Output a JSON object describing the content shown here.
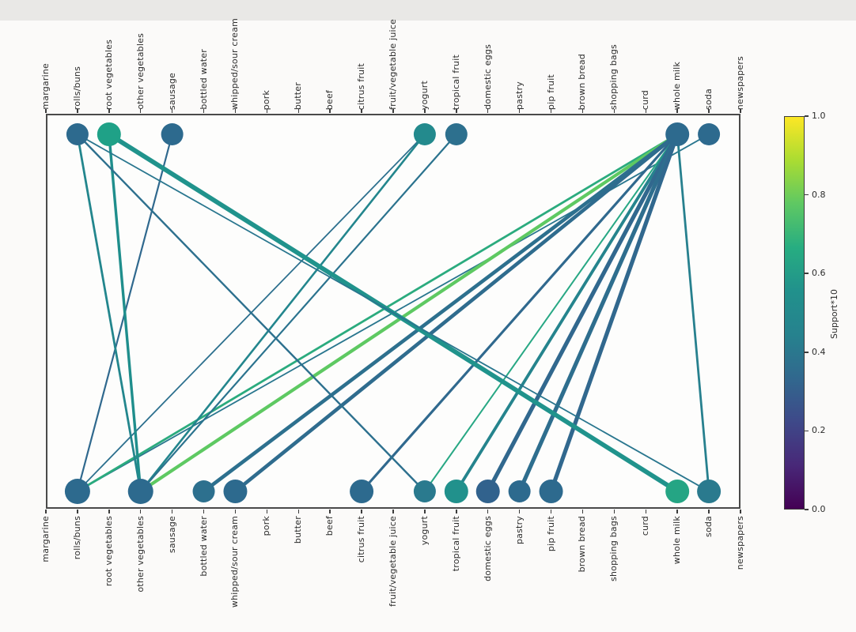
{
  "chart_data": {
    "type": "scatter",
    "subtype": "bipartite-association-rules-network",
    "title": "",
    "xlabel": "",
    "ylabel": "",
    "grid": false,
    "items": [
      "margarine",
      "rolls/buns",
      "root vegetables",
      "other vegetables",
      "sausage",
      "bottled water",
      "whipped/sour cream",
      "pork",
      "butter",
      "beef",
      "citrus fruit",
      "fruit/vegetable juice",
      "yogurt",
      "tropical fruit",
      "domestic eggs",
      "pastry",
      "pip fruit",
      "brown bread",
      "shopping bags",
      "curd",
      "whole milk",
      "soda",
      "newspapers"
    ],
    "top_axis_nodes": [
      {
        "item": "rolls/buns",
        "color": "#2d6a8e",
        "r": 14
      },
      {
        "item": "root vegetables",
        "color": "#1fa187",
        "r": 15
      },
      {
        "item": "sausage",
        "color": "#2d6a8e",
        "r": 14
      },
      {
        "item": "yogurt",
        "color": "#238a8d",
        "r": 14
      },
      {
        "item": "tropical fruit",
        "color": "#2d708e",
        "r": 14
      },
      {
        "item": "whole milk",
        "color": "#2d6a8e",
        "r": 15
      },
      {
        "item": "soda",
        "color": "#2d6a8e",
        "r": 14
      }
    ],
    "bottom_axis_nodes": [
      {
        "item": "rolls/buns",
        "color": "#2d6a8e",
        "r": 16
      },
      {
        "item": "other vegetables",
        "color": "#2d6a8e",
        "r": 16
      },
      {
        "item": "bottled water",
        "color": "#2d708e",
        "r": 14
      },
      {
        "item": "whipped/sour cream",
        "color": "#2d6a8e",
        "r": 15
      },
      {
        "item": "citrus fruit",
        "color": "#2d6a8e",
        "r": 15
      },
      {
        "item": "yogurt",
        "color": "#2a7a8e",
        "r": 14
      },
      {
        "item": "tropical fruit",
        "color": "#21918c",
        "r": 15
      },
      {
        "item": "domestic eggs",
        "color": "#31628d",
        "r": 15
      },
      {
        "item": "pastry",
        "color": "#2d6a8e",
        "r": 14
      },
      {
        "item": "pip fruit",
        "color": "#2d6a8e",
        "r": 15
      },
      {
        "item": "whole milk",
        "color": "#25a584",
        "r": 15
      },
      {
        "item": "soda",
        "color": "#2a7a8e",
        "r": 15
      }
    ],
    "edges": [
      {
        "from": "rolls/buns",
        "to": "sausage",
        "support10": 0.31,
        "color": "#30698e",
        "width": 2.2
      },
      {
        "from": "rolls/buns",
        "to": "yogurt",
        "support10": 0.34,
        "color": "#2d708e",
        "width": 1.8
      },
      {
        "from": "rolls/buns",
        "to": "soda",
        "support10": 0.38,
        "color": "#29768e",
        "width": 1.8
      },
      {
        "from": "rolls/buns",
        "to": "whole milk",
        "support10": 0.57,
        "color": "#2bab7e",
        "width": 2.8
      },
      {
        "from": "other vegetables",
        "to": "rolls/buns",
        "support10": 0.43,
        "color": "#23868d",
        "width": 2.8
      },
      {
        "from": "other vegetables",
        "to": "root vegetables",
        "support10": 0.47,
        "color": "#1f8e8c",
        "width": 3.4
      },
      {
        "from": "other vegetables",
        "to": "yogurt",
        "support10": 0.43,
        "color": "#23868d",
        "width": 2.6
      },
      {
        "from": "other vegetables",
        "to": "tropical fruit",
        "support10": 0.36,
        "color": "#2b738e",
        "width": 2.2
      },
      {
        "from": "other vegetables",
        "to": "whole milk",
        "support10": 0.75,
        "color": "#5ec962",
        "width": 4.2
      },
      {
        "from": "bottled water",
        "to": "whole milk",
        "support10": 0.34,
        "color": "#2d708e",
        "width": 4.6
      },
      {
        "from": "whipped/sour cream",
        "to": "whole milk",
        "support10": 0.32,
        "color": "#2f6c8e",
        "width": 4.6
      },
      {
        "from": "citrus fruit",
        "to": "whole milk",
        "support10": 0.31,
        "color": "#30698e",
        "width": 3.2
      },
      {
        "from": "yogurt",
        "to": "rolls/buns",
        "support10": 0.34,
        "color": "#2d708e",
        "width": 2.4
      },
      {
        "from": "yogurt",
        "to": "whole milk",
        "support10": 0.56,
        "color": "#28a884",
        "width": 2.0
      },
      {
        "from": "tropical fruit",
        "to": "whole milk",
        "support10": 0.42,
        "color": "#25848d",
        "width": 3.8
      },
      {
        "from": "domestic eggs",
        "to": "whole milk",
        "support10": 0.3,
        "color": "#31688e",
        "width": 5.2
      },
      {
        "from": "pastry",
        "to": "whole milk",
        "support10": 0.33,
        "color": "#2e6e8e",
        "width": 5.2
      },
      {
        "from": "pip fruit",
        "to": "whole milk",
        "support10": 0.3,
        "color": "#31688e",
        "width": 5.2
      },
      {
        "from": "whole milk",
        "to": "root vegetables",
        "support10": 0.49,
        "color": "#20938c",
        "width": 5.8
      },
      {
        "from": "soda",
        "to": "whole milk",
        "support10": 0.4,
        "color": "#27808e",
        "width": 2.8
      },
      {
        "from": "soda",
        "to": "rolls/buns",
        "support10": 0.38,
        "color": "#29768e",
        "width": 1.8
      }
    ],
    "colorbar": {
      "label": "Support*10",
      "ticks": [
        "0.0",
        "0.2",
        "0.4",
        "0.6",
        "0.8",
        "1.0"
      ],
      "min": 0.0,
      "max": 1.0,
      "colormap": "viridis",
      "gradient": [
        "#440154",
        "#482878",
        "#3e4989",
        "#31688e",
        "#26828e",
        "#21918c",
        "#27ad81",
        "#5ec863",
        "#aadc32",
        "#fde725"
      ]
    },
    "axis_ranges": {
      "y_top_row": 1,
      "y_bottom_row": 0
    }
  }
}
